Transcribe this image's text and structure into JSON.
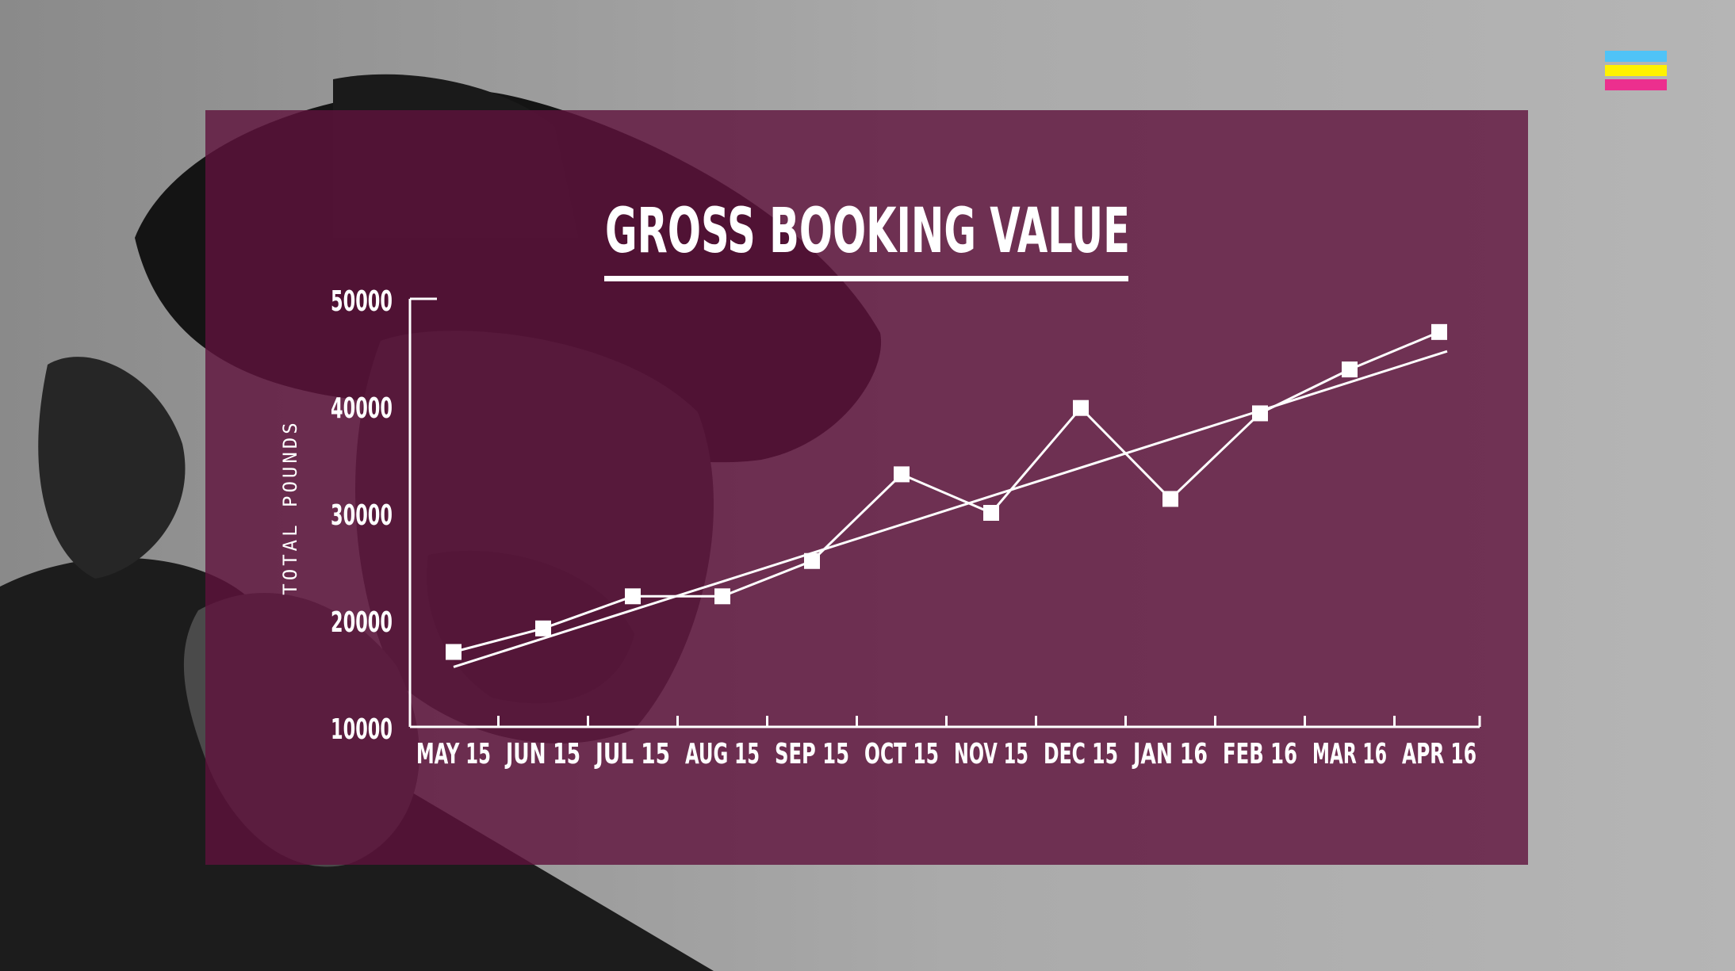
{
  "colors": {
    "background": "#b2b2b2",
    "panel": "#5f123c",
    "line": "#ffffff",
    "logo": [
      "#4fc3f7",
      "#fff200",
      "#ec2f8e"
    ]
  },
  "icons": {
    "brand_logo": "tricolor-stripes-logo"
  },
  "chart_data": {
    "type": "line",
    "title": "GROSS BOOKING VALUE",
    "xlabel": "",
    "ylabel": "TOTAL POUNDS",
    "categories": [
      "MAY 15",
      "JUN 15",
      "JUL 15",
      "AUG 15",
      "SEP 15",
      "OCT 15",
      "NOV 15",
      "DEC 15",
      "JAN 16",
      "FEB 16",
      "MAR 16",
      "APR 16"
    ],
    "y_ticks": [
      "50000",
      "40000",
      "30000",
      "20000",
      "10000"
    ],
    "ylim": [
      10000,
      50000
    ],
    "grid": false,
    "series": [
      {
        "values": [
          17000,
          19200,
          22200,
          22200,
          25500,
          33600,
          30000,
          39800,
          31300,
          39300,
          43400,
          46900
        ]
      }
    ],
    "trendline": {
      "start": 15600,
      "end": 45100
    }
  }
}
